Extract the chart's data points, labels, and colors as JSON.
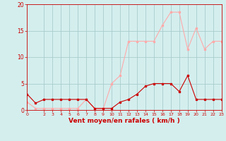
{
  "x": [
    0,
    1,
    2,
    3,
    4,
    5,
    6,
    7,
    8,
    9,
    10,
    11,
    12,
    13,
    14,
    15,
    16,
    17,
    18,
    19,
    20,
    21,
    22,
    23
  ],
  "wind_avg": [
    3.0,
    1.3,
    2.0,
    2.0,
    2.0,
    2.0,
    2.0,
    2.0,
    0.3,
    0.3,
    0.3,
    1.5,
    2.0,
    3.0,
    4.5,
    5.0,
    5.0,
    5.0,
    3.5,
    6.5,
    2.0,
    2.0,
    2.0,
    2.0
  ],
  "wind_gust": [
    1.5,
    0.3,
    0.3,
    0.3,
    0.3,
    0.3,
    0.3,
    2.0,
    0.2,
    0.2,
    5.0,
    6.5,
    13.0,
    13.0,
    13.0,
    13.0,
    16.0,
    18.5,
    18.5,
    11.5,
    15.5,
    11.5,
    13.0,
    13.0
  ],
  "color_avg": "#cc0000",
  "color_gust": "#ffaaaa",
  "xlabel": "Vent moyen/en rafales ( km/h )",
  "ylim": [
    0,
    20
  ],
  "yticks": [
    0,
    5,
    10,
    15,
    20
  ],
  "xticks": [
    0,
    2,
    3,
    4,
    5,
    6,
    7,
    8,
    9,
    10,
    11,
    12,
    13,
    14,
    15,
    16,
    17,
    18,
    19,
    20,
    21,
    22,
    23
  ],
  "bg_color": "#d4eeee",
  "grid_color": "#aacccc",
  "axis_color": "#cc0000",
  "marker": "s",
  "markersize": 2.0,
  "linewidth": 0.8
}
